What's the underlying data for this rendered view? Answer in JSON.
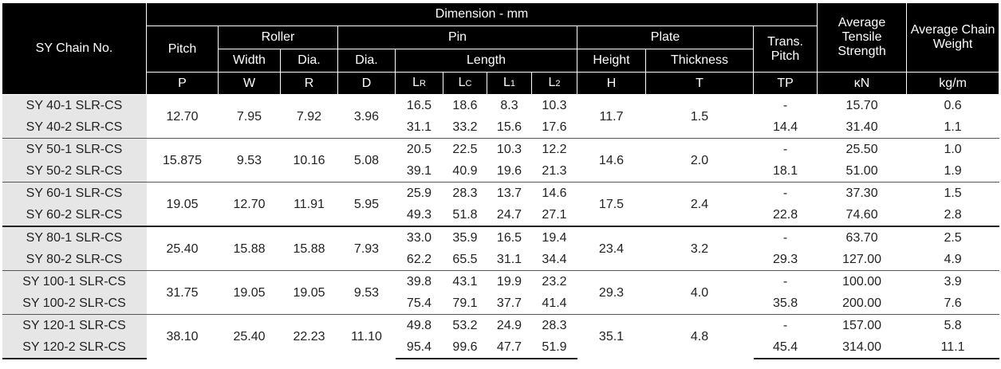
{
  "header": {
    "chain_no": "SY Chain No.",
    "dimension": "Dimension - mm",
    "pitch": "Pitch",
    "roller": "Roller",
    "pin": "Pin",
    "plate": "Plate",
    "trans_pitch": "Trans. Pitch",
    "tensile": "Average Tensile Strength",
    "weight": "Average Chain Weight",
    "roller_width": "Width",
    "roller_dia": "Dia.",
    "pin_dia": "Dia.",
    "pin_length": "Length",
    "plate_height": "Height",
    "plate_thickness": "Thickness",
    "sym_p": "P",
    "sym_w": "W",
    "sym_r": "R",
    "sym_d": "D",
    "sym_lr_main": "L",
    "sym_lr_sub": "R",
    "sym_lc_main": "L",
    "sym_lc_sub": "C",
    "sym_l1_main": "L",
    "sym_l1_sub": "1",
    "sym_l2_main": "L",
    "sym_l2_sub": "2",
    "sym_h": "H",
    "sym_t": "T",
    "sym_tp": "TP",
    "unit_kn": "κN",
    "unit_kgm": "kg/m"
  },
  "rows": [
    {
      "name1": "SY 40-1 SLR-CS",
      "name2": "SY 40-2 SLR-CS",
      "p": "12.70",
      "w": "7.95",
      "r": "7.92",
      "d": "3.96",
      "lr1": "16.5",
      "lc1": "18.6",
      "l11": "8.3",
      "l21": "10.3",
      "lr2": "31.1",
      "lc2": "33.2",
      "l12": "15.6",
      "l22": "17.6",
      "h": "11.7",
      "t": "1.5",
      "tp1": "-",
      "tp2": "14.4",
      "kn1": "15.70",
      "kn2": "31.40",
      "kg1": "0.6",
      "kg2": "1.1"
    },
    {
      "name1": "SY 50-1 SLR-CS",
      "name2": "SY 50-2 SLR-CS",
      "p": "15.875",
      "w": "9.53",
      "r": "10.16",
      "d": "5.08",
      "lr1": "20.5",
      "lc1": "22.5",
      "l11": "10.3",
      "l21": "12.2",
      "lr2": "39.1",
      "lc2": "40.9",
      "l12": "19.6",
      "l22": "21.3",
      "h": "14.6",
      "t": "2.0",
      "tp1": "-",
      "tp2": "18.1",
      "kn1": "25.50",
      "kn2": "51.00",
      "kg1": "1.0",
      "kg2": "1.9"
    },
    {
      "name1": "SY 60-1 SLR-CS",
      "name2": "SY 60-2 SLR-CS",
      "p": "19.05",
      "w": "12.70",
      "r": "11.91",
      "d": "5.95",
      "lr1": "25.9",
      "lc1": "28.3",
      "l11": "13.7",
      "l21": "14.6",
      "lr2": "49.3",
      "lc2": "51.8",
      "l12": "24.7",
      "l22": "27.1",
      "h": "17.5",
      "t": "2.4",
      "tp1": "-",
      "tp2": "22.8",
      "kn1": "37.30",
      "kn2": "74.60",
      "kg1": "1.5",
      "kg2": "2.8"
    },
    {
      "name1": "SY 80-1 SLR-CS",
      "name2": "SY 80-2 SLR-CS",
      "p": "25.40",
      "w": "15.88",
      "r": "15.88",
      "d": "7.93",
      "lr1": "33.0",
      "lc1": "35.9",
      "l11": "16.5",
      "l21": "19.4",
      "lr2": "62.2",
      "lc2": "65.5",
      "l12": "31.1",
      "l22": "34.4",
      "h": "23.4",
      "t": "3.2",
      "tp1": "-",
      "tp2": "29.3",
      "kn1": "63.70",
      "kn2": "127.00",
      "kg1": "2.5",
      "kg2": "4.9"
    },
    {
      "name1": "SY 100-1 SLR-CS",
      "name2": "SY 100-2 SLR-CS",
      "p": "31.75",
      "w": "19.05",
      "r": "19.05",
      "d": "9.53",
      "lr1": "39.8",
      "lc1": "43.1",
      "l11": "19.9",
      "l21": "23.2",
      "lr2": "75.4",
      "lc2": "79.1",
      "l12": "37.7",
      "l22": "41.4",
      "h": "29.3",
      "t": "4.0",
      "tp1": "-",
      "tp2": "35.8",
      "kn1": "100.00",
      "kn2": "200.00",
      "kg1": "3.9",
      "kg2": "7.6"
    },
    {
      "name1": "SY 120-1 SLR-CS",
      "name2": "SY 120-2 SLR-CS",
      "p": "38.10",
      "w": "25.40",
      "r": "22.23",
      "d": "11.10",
      "lr1": "49.8",
      "lc1": "53.2",
      "l11": "24.9",
      "l21": "28.3",
      "lr2": "95.4",
      "lc2": "99.6",
      "l12": "47.7",
      "l22": "51.9",
      "h": "35.1",
      "t": "4.8",
      "tp1": "-",
      "tp2": "45.4",
      "kn1": "157.00",
      "kn2": "314.00",
      "kg1": "5.8",
      "kg2": "11.1"
    }
  ]
}
